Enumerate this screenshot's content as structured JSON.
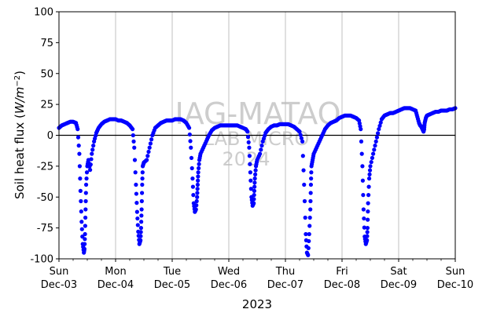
{
  "chart_data": {
    "type": "scatter",
    "ylabel_prefix": "Soil heat flux (",
    "ylabel_unit_base": "W/m",
    "ylabel_unit_exp": "−2",
    "ylabel_suffix": ")",
    "xlabel": "2023",
    "ylim": [
      -100,
      100
    ],
    "yticks": [
      -100,
      -75,
      -50,
      -25,
      0,
      25,
      50,
      75,
      100
    ],
    "xlim_days": [
      0,
      7
    ],
    "xticks": [
      {
        "day": "Sun",
        "date": "Dec-03"
      },
      {
        "day": "Mon",
        "date": "Dec-04"
      },
      {
        "day": "Tue",
        "date": "Dec-05"
      },
      {
        "day": "Wed",
        "date": "Dec-06"
      },
      {
        "day": "Thu",
        "date": "Dec-07"
      },
      {
        "day": "Fri",
        "date": "Dec-08"
      },
      {
        "day": "Sat",
        "date": "Dec-09"
      },
      {
        "day": "Sun",
        "date": "Dec-10"
      }
    ],
    "grid": "vertical",
    "zero_line": true,
    "marker_color": "#0000ff",
    "watermark": {
      "line1": "IAG-MATAO",
      "line2": "LAB MICRO",
      "line3": "2024"
    },
    "series": [
      {
        "x_days": [
          0.0,
          0.05,
          0.1,
          0.15,
          0.2,
          0.25,
          0.3,
          0.33,
          0.36,
          0.38,
          0.4,
          0.42,
          0.44,
          0.45,
          0.46,
          0.47,
          0.48,
          0.5,
          0.52,
          0.55,
          0.58,
          0.62,
          0.66,
          0.7,
          0.75,
          0.8,
          0.85,
          0.9,
          0.95,
          1.0,
          1.05,
          1.1,
          1.15,
          1.2,
          1.25,
          1.3,
          1.33,
          1.36,
          1.38,
          1.4,
          1.42,
          1.44,
          1.45,
          1.46,
          1.47,
          1.48,
          1.5,
          1.55,
          1.6,
          1.65,
          1.7,
          1.75,
          1.8,
          1.85,
          1.9,
          1.95,
          2.0,
          2.05,
          2.1,
          2.15,
          2.2,
          2.25,
          2.3,
          2.33,
          2.36,
          2.38,
          2.4,
          2.42,
          2.44,
          2.45,
          2.46,
          2.48,
          2.5,
          2.55,
          2.6,
          2.65,
          2.7,
          2.75,
          2.8,
          2.85,
          2.9,
          2.95,
          3.0,
          3.05,
          3.1,
          3.15,
          3.2,
          3.25,
          3.3,
          3.33,
          3.36,
          3.38,
          3.4,
          3.42,
          3.44,
          3.45,
          3.46,
          3.48,
          3.5,
          3.55,
          3.6,
          3.65,
          3.7,
          3.75,
          3.8,
          3.85,
          3.9,
          3.95,
          4.0,
          4.05,
          4.1,
          4.15,
          4.2,
          4.25,
          4.3,
          4.33,
          4.36,
          4.38,
          4.4,
          4.42,
          4.44,
          4.45,
          4.46,
          4.48,
          4.5,
          4.55,
          4.6,
          4.65,
          4.7,
          4.75,
          4.8,
          4.85,
          4.9,
          4.95,
          5.0,
          5.05,
          5.1,
          5.15,
          5.2,
          5.25,
          5.3,
          5.33,
          5.36,
          5.38,
          5.4,
          5.42,
          5.44,
          5.45,
          5.46,
          5.48,
          5.5,
          5.55,
          5.6,
          5.65,
          5.7,
          5.75,
          5.8,
          5.85,
          5.9,
          5.95,
          6.0,
          6.05,
          6.1,
          6.15,
          6.2,
          6.25,
          6.3,
          6.33,
          6.36,
          6.38,
          6.4,
          6.42,
          6.44,
          6.45,
          6.46,
          6.48,
          6.5,
          6.55,
          6.6,
          6.65,
          6.7,
          6.75,
          6.8,
          6.85,
          6.9,
          6.95,
          7.0
        ],
        "y": [
          6,
          8,
          9,
          10,
          11,
          11,
          10,
          5,
          -15,
          -45,
          -70,
          -88,
          -95,
          -92,
          -80,
          -60,
          -40,
          -25,
          -20,
          -28,
          -15,
          -5,
          2,
          6,
          9,
          11,
          12,
          13,
          13,
          13,
          12,
          12,
          11,
          10,
          8,
          5,
          -10,
          -40,
          -62,
          -78,
          -88,
          -85,
          -75,
          -60,
          -40,
          -25,
          -22,
          -20,
          -10,
          0,
          6,
          8,
          10,
          11,
          12,
          12,
          12,
          13,
          13,
          13,
          12,
          10,
          6,
          -10,
          -35,
          -55,
          -62,
          -60,
          -50,
          -40,
          -30,
          -20,
          -15,
          -10,
          -5,
          0,
          4,
          6,
          7,
          8,
          8,
          8,
          8,
          8,
          8,
          8,
          7,
          6,
          5,
          3,
          -10,
          -30,
          -50,
          -57,
          -55,
          -45,
          -35,
          -25,
          -20,
          -15,
          -5,
          2,
          5,
          7,
          8,
          8,
          9,
          9,
          9,
          9,
          8,
          7,
          5,
          3,
          -5,
          -40,
          -80,
          -95,
          -97,
          -80,
          -60,
          -40,
          -25,
          -20,
          -15,
          -10,
          -5,
          0,
          5,
          8,
          10,
          11,
          12,
          14,
          15,
          16,
          16,
          16,
          15,
          14,
          12,
          5,
          -25,
          -60,
          -82,
          -88,
          -85,
          -75,
          -55,
          -35,
          -25,
          -15,
          -5,
          5,
          13,
          16,
          17,
          18,
          18,
          19,
          20,
          21,
          22,
          22,
          22,
          21,
          20,
          15,
          10,
          8,
          7,
          5,
          3,
          5,
          10,
          14,
          16,
          17,
          18,
          19,
          19,
          20,
          20,
          20,
          21,
          21,
          22
        ]
      }
    ]
  }
}
